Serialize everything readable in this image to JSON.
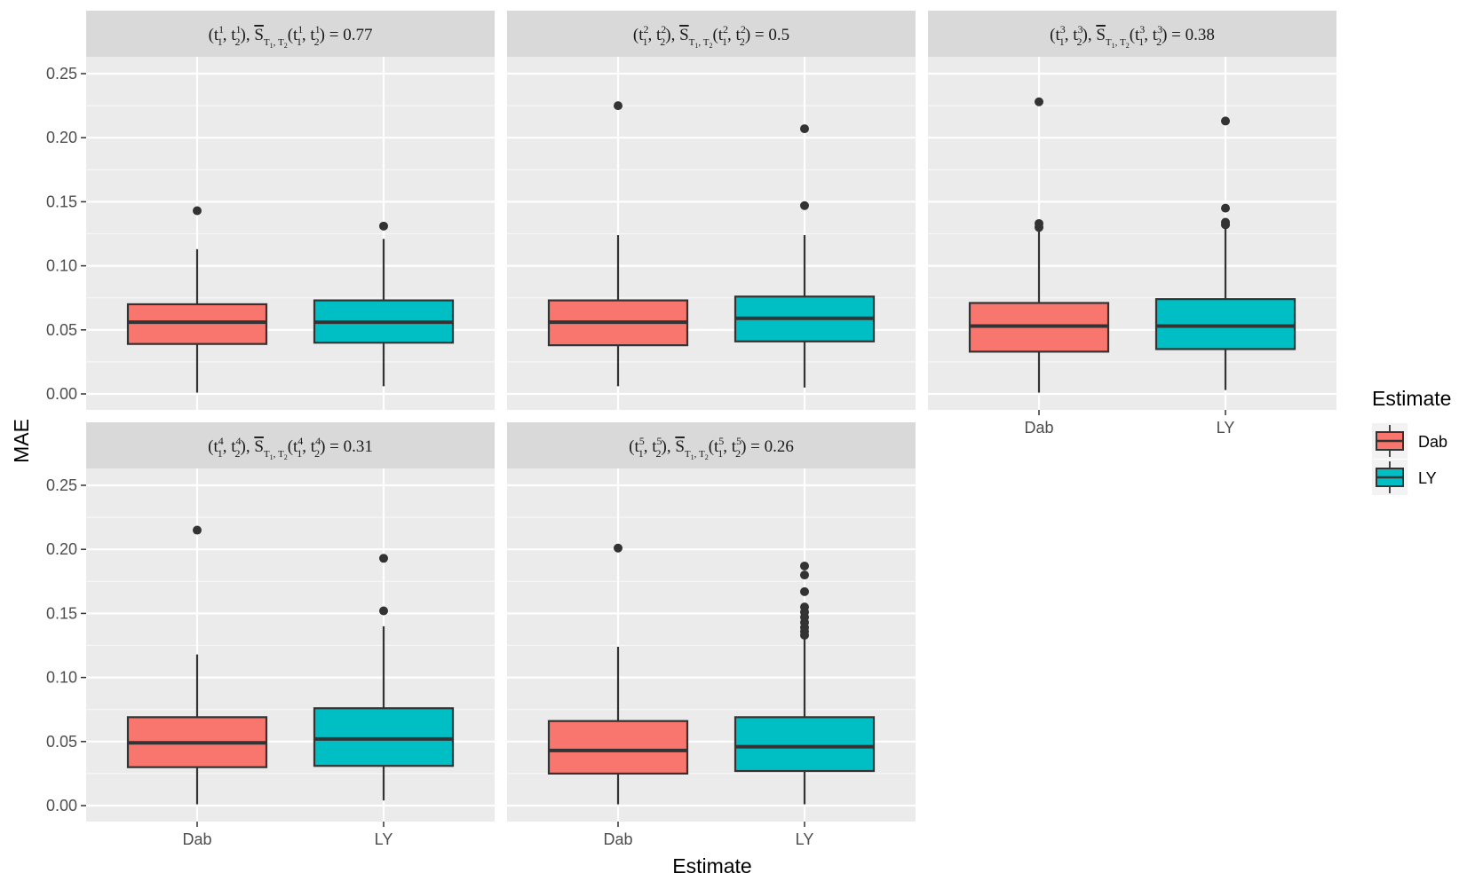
{
  "chart_data": {
    "type": "boxplot",
    "facet_layout": "3 columns, 2 rows",
    "xlabel": "Estimate",
    "ylabel": "MAE",
    "ylim": [
      -0.01,
      0.25
    ],
    "y_ticks": [
      0.0,
      0.05,
      0.1,
      0.15,
      0.2,
      0.25
    ],
    "y_tick_labels": [
      "0.00",
      "0.05",
      "0.10",
      "0.15",
      "0.20",
      "0.25"
    ],
    "categories": [
      "Dab",
      "LY"
    ],
    "legend": {
      "title": "Estimate",
      "position": "right",
      "entries": [
        {
          "label": "Dab",
          "color": "#F8766D"
        },
        {
          "label": "LY",
          "color": "#00BFC4"
        }
      ]
    },
    "panels": [
      {
        "strip": {
          "pair": "(t",
          "idx": "1",
          "value": "0.77"
        },
        "boxes": [
          {
            "category": "Dab",
            "lower_whisker": 0.001,
            "q1": 0.039,
            "median": 0.056,
            "q3": 0.07,
            "upper_whisker": 0.113,
            "outliers": [
              0.143
            ]
          },
          {
            "category": "LY",
            "lower_whisker": 0.006,
            "q1": 0.04,
            "median": 0.056,
            "q3": 0.073,
            "upper_whisker": 0.121,
            "outliers": [
              0.131
            ]
          }
        ]
      },
      {
        "strip": {
          "pair": "(t",
          "idx": "2",
          "value": "0.5"
        },
        "boxes": [
          {
            "category": "Dab",
            "lower_whisker": 0.006,
            "q1": 0.038,
            "median": 0.056,
            "q3": 0.073,
            "upper_whisker": 0.124,
            "outliers": [
              0.225
            ]
          },
          {
            "category": "LY",
            "lower_whisker": 0.005,
            "q1": 0.041,
            "median": 0.059,
            "q3": 0.076,
            "upper_whisker": 0.124,
            "outliers": [
              0.147,
              0.207
            ]
          }
        ]
      },
      {
        "strip": {
          "pair": "(t",
          "idx": "3",
          "value": "0.38"
        },
        "boxes": [
          {
            "category": "Dab",
            "lower_whisker": 0.001,
            "q1": 0.033,
            "median": 0.053,
            "q3": 0.071,
            "upper_whisker": 0.128,
            "outliers": [
              0.13,
              0.133,
              0.228
            ]
          },
          {
            "category": "LY",
            "lower_whisker": 0.003,
            "q1": 0.035,
            "median": 0.053,
            "q3": 0.074,
            "upper_whisker": 0.131,
            "outliers": [
              0.132,
              0.134,
              0.145,
              0.213
            ]
          }
        ]
      },
      {
        "strip": {
          "pair": "(t",
          "idx": "4",
          "value": "0.31"
        },
        "boxes": [
          {
            "category": "Dab",
            "lower_whisker": 0.001,
            "q1": 0.03,
            "median": 0.049,
            "q3": 0.069,
            "upper_whisker": 0.118,
            "outliers": [
              0.215
            ]
          },
          {
            "category": "LY",
            "lower_whisker": 0.004,
            "q1": 0.031,
            "median": 0.052,
            "q3": 0.076,
            "upper_whisker": 0.14,
            "outliers": [
              0.152,
              0.193
            ]
          }
        ]
      },
      {
        "strip": {
          "pair": "(t",
          "idx": "5",
          "value": "0.26"
        },
        "boxes": [
          {
            "category": "Dab",
            "lower_whisker": 0.001,
            "q1": 0.025,
            "median": 0.043,
            "q3": 0.066,
            "upper_whisker": 0.124,
            "outliers": [
              0.201
            ]
          },
          {
            "category": "LY",
            "lower_whisker": 0.001,
            "q1": 0.027,
            "median": 0.046,
            "q3": 0.069,
            "upper_whisker": 0.131,
            "outliers": [
              0.133,
              0.136,
              0.139,
              0.143,
              0.147,
              0.151,
              0.155,
              0.167,
              0.18,
              0.187
            ]
          }
        ]
      }
    ]
  }
}
